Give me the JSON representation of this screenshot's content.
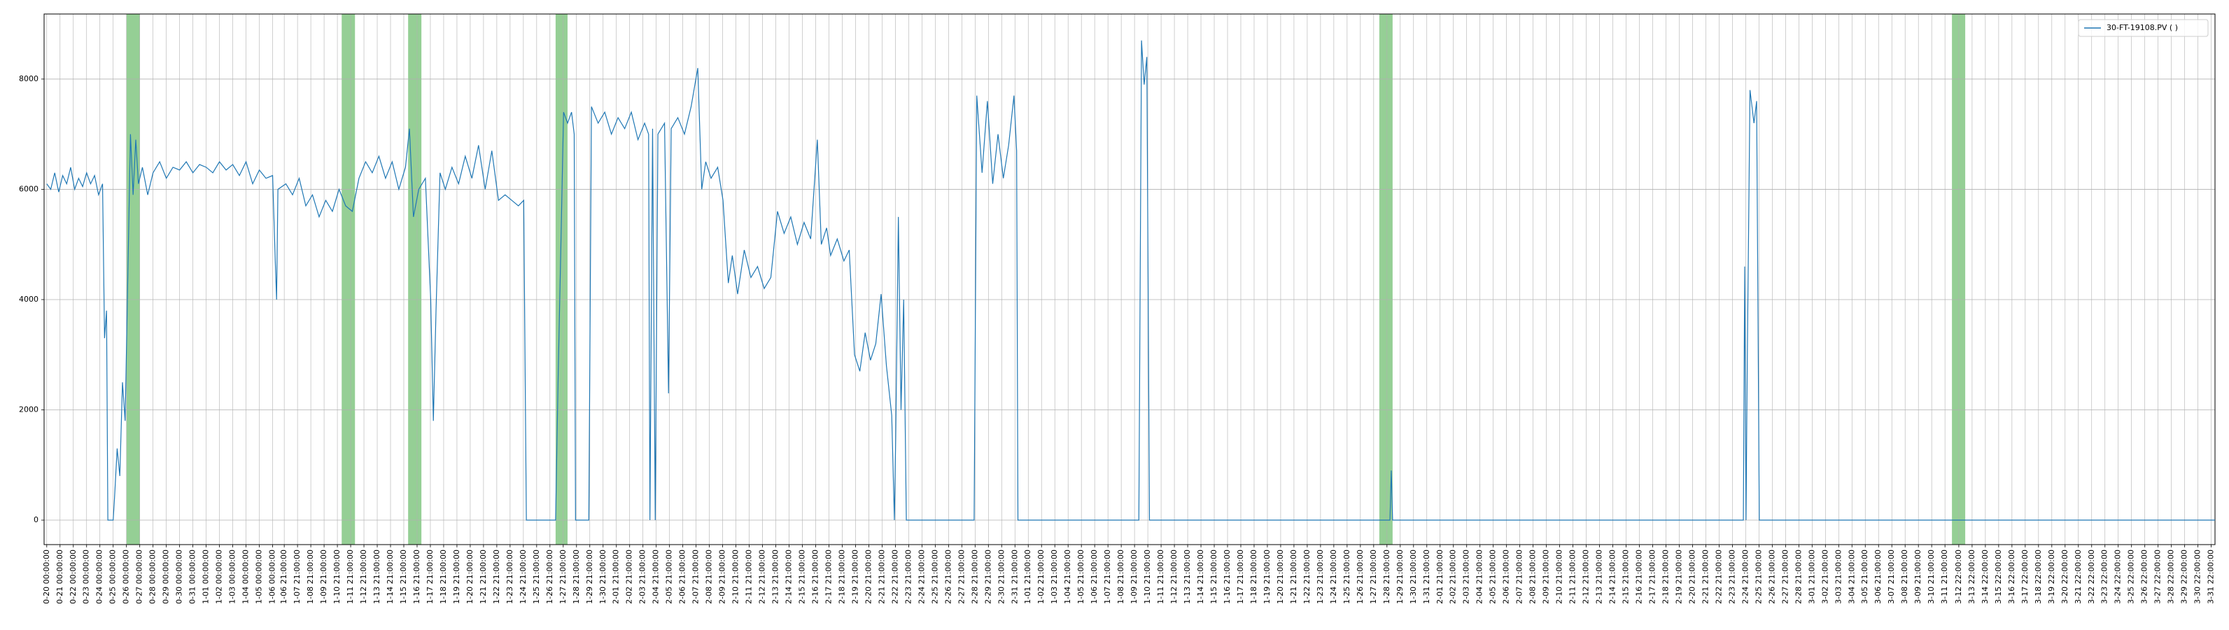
{
  "chart_data": {
    "type": "line",
    "x": [
      0,
      0.3,
      0.6,
      0.9,
      1.2,
      1.5,
      1.8,
      2.1,
      2.4,
      2.7,
      3.0,
      3.3,
      3.6,
      3.9,
      4.2,
      4.35,
      4.5,
      4.6,
      5.0,
      5.1,
      5.3,
      5.5,
      5.7,
      5.9,
      6.1,
      6.3,
      6.5,
      6.7,
      6.9,
      7.2,
      7.6,
      8,
      8.5,
      9,
      9.5,
      10,
      10.5,
      11,
      11.5,
      12,
      12.5,
      13,
      13.5,
      14,
      14.5,
      15,
      15.5,
      16,
      16.5,
      17,
      17.2,
      17.3,
      17.4,
      18,
      18.5,
      19,
      19.5,
      20,
      20.5,
      21,
      21.5,
      22,
      22.5,
      23,
      23.5,
      24,
      24.5,
      25,
      25.5,
      26,
      26.5,
      27,
      27.3,
      27.6,
      28,
      28.5,
      28.9,
      29.1,
      29.3,
      29.6,
      30,
      30.5,
      31,
      31.5,
      32,
      32.5,
      33,
      33.5,
      34,
      34.5,
      35,
      35.5,
      35.9,
      36.1,
      38.3,
      38.5,
      38.7,
      38.9,
      39.2,
      39.5,
      39.7,
      39.8,
      40.8,
      41,
      41.5,
      42,
      42.5,
      43,
      43.5,
      44,
      44.5,
      45,
      45.3,
      45.4,
      45.6,
      45.8,
      46,
      46.5,
      46.8,
      47,
      47.5,
      48,
      48.5,
      49,
      49.3,
      49.6,
      50,
      50.5,
      50.9,
      51.3,
      51.6,
      52,
      52.5,
      53,
      53.5,
      54,
      54.5,
      55,
      55.5,
      56,
      56.5,
      57,
      57.5,
      58,
      58.3,
      58.7,
      59,
      59.5,
      60,
      60.4,
      60.8,
      61.2,
      61.6,
      62,
      62.4,
      62.8,
      63.2,
      63.6,
      63.8,
      63.9,
      64.1,
      64.3,
      64.5,
      64.7,
      69.8,
      70,
      70.4,
      70.8,
      71.2,
      71.6,
      72,
      72.4,
      72.8,
      73,
      73.1,
      82.2,
      82.4,
      82.6,
      82.8,
      83,
      101.1,
      101.2,
      101.3,
      127.7,
      127.8,
      127.9,
      128,
      128.2,
      128.5,
      128.7,
      128.9,
      163.2
    ],
    "series": [
      {
        "name": "30-FT-19108.PV ( )",
        "color": "#1f77b4",
        "values": [
          6100,
          6000,
          6300,
          5950,
          6250,
          6100,
          6400,
          6000,
          6200,
          6050,
          6300,
          6100,
          6250,
          5900,
          6100,
          3300,
          3800,
          0,
          0,
          400,
          1300,
          800,
          2500,
          1800,
          4400,
          7000,
          5900,
          6900,
          6100,
          6400,
          5900,
          6300,
          6500,
          6200,
          6400,
          6350,
          6500,
          6300,
          6450,
          6400,
          6300,
          6500,
          6350,
          6450,
          6250,
          6500,
          6100,
          6350,
          6200,
          6250,
          4700,
          4000,
          6000,
          6100,
          5900,
          6200,
          5700,
          5900,
          5500,
          5800,
          5600,
          6000,
          5700,
          5600,
          6200,
          6500,
          6300,
          6600,
          6200,
          6500,
          6000,
          6400,
          7100,
          5500,
          6000,
          6200,
          4000,
          1800,
          3800,
          6300,
          6000,
          6400,
          6100,
          6600,
          6200,
          6800,
          6000,
          6700,
          5800,
          5900,
          5800,
          5700,
          5800,
          0,
          0,
          2700,
          5000,
          7400,
          7200,
          7400,
          7000,
          0,
          0,
          7500,
          7200,
          7400,
          7000,
          7300,
          7100,
          7400,
          6900,
          7200,
          7000,
          0,
          7100,
          0,
          7000,
          7200,
          2300,
          7100,
          7300,
          7000,
          7500,
          8200,
          6000,
          6500,
          6200,
          6400,
          5800,
          4300,
          4800,
          4100,
          4900,
          4400,
          4600,
          4200,
          4400,
          5600,
          5200,
          5500,
          5000,
          5400,
          5100,
          6900,
          5000,
          5300,
          4800,
          5100,
          4700,
          4900,
          3000,
          2700,
          3400,
          2900,
          3200,
          4100,
          2800,
          1900,
          0,
          1500,
          5500,
          2000,
          4000,
          0,
          0,
          7700,
          6300,
          7600,
          6100,
          7000,
          6200,
          6800,
          7700,
          6700,
          0,
          0,
          8700,
          7900,
          8400,
          0,
          0,
          900,
          0,
          0,
          4600,
          0,
          3000,
          7800,
          7200,
          7600,
          0,
          0
        ]
      }
    ],
    "spans": [
      [
        6.0,
        7.0
      ],
      [
        22.2,
        23.2
      ],
      [
        27.2,
        28.2
      ],
      [
        38.3,
        39.2
      ],
      [
        100.3,
        101.3
      ],
      [
        143.4,
        144.4
      ]
    ],
    "span_color": "#2ca02c",
    "xlim": [
      -0.2,
      163.2
    ],
    "ylim": [
      -444,
      9180
    ],
    "yticks": [
      0,
      2000,
      4000,
      6000,
      8000
    ],
    "xticks": [
      {
        "value": 0,
        "label": "0-20 00:00:00"
      },
      {
        "value": 1,
        "label": "0-21 00:00:00"
      },
      {
        "value": 2,
        "label": "0-22 00:00:00"
      },
      {
        "value": 3,
        "label": "0-23 00:00:00"
      },
      {
        "value": 4,
        "label": "0-24 00:00:00"
      },
      {
        "value": 5,
        "label": "0-25 00:00:00"
      },
      {
        "value": 6,
        "label": "0-26 00:00:00"
      },
      {
        "value": 7,
        "label": "0-27 00:00:00"
      },
      {
        "value": 8,
        "label": "0-28 00:00:00"
      },
      {
        "value": 9,
        "label": "0-29 00:00:00"
      },
      {
        "value": 10,
        "label": "0-30 00:00:00"
      },
      {
        "value": 11,
        "label": "0-31 00:00:00"
      },
      {
        "value": 12,
        "label": "1-01 00:00:00"
      },
      {
        "value": 13,
        "label": "1-02 00:00:00"
      },
      {
        "value": 14,
        "label": "1-03 00:00:00"
      },
      {
        "value": 15,
        "label": "1-04 00:00:00"
      },
      {
        "value": 16,
        "label": "1-05 00:00:00"
      },
      {
        "value": 17,
        "label": "1-06 00:00:00"
      },
      {
        "value": 17.875,
        "label": "1-06 21:00:00"
      },
      {
        "value": 18.875,
        "label": "1-07 21:00:00"
      },
      {
        "value": 19.875,
        "label": "1-08 21:00:00"
      },
      {
        "value": 20.875,
        "label": "1-09 21:00:00"
      },
      {
        "value": 21.875,
        "label": "1-10 21:00:00"
      },
      {
        "value": 22.875,
        "label": "1-11 21:00:00"
      },
      {
        "value": 23.875,
        "label": "1-12 21:00:00"
      },
      {
        "value": 24.875,
        "label": "1-13 21:00:00"
      },
      {
        "value": 25.875,
        "label": "1-14 21:00:00"
      },
      {
        "value": 26.875,
        "label": "1-15 21:00:00"
      },
      {
        "value": 27.875,
        "label": "1-16 21:00:00"
      },
      {
        "value": 28.875,
        "label": "1-17 21:00:00"
      },
      {
        "value": 29.875,
        "label": "1-18 21:00:00"
      },
      {
        "value": 30.875,
        "label": "1-19 21:00:00"
      },
      {
        "value": 31.875,
        "label": "1-20 21:00:00"
      },
      {
        "value": 32.875,
        "label": "1-21 21:00:00"
      },
      {
        "value": 33.875,
        "label": "1-22 21:00:00"
      },
      {
        "value": 34.875,
        "label": "1-23 21:00:00"
      },
      {
        "value": 35.875,
        "label": "1-24 21:00:00"
      },
      {
        "value": 36.875,
        "label": "1-25 21:00:00"
      },
      {
        "value": 37.875,
        "label": "1-26 21:00:00"
      },
      {
        "value": 38.875,
        "label": "1-27 21:00:00"
      },
      {
        "value": 39.875,
        "label": "1-28 21:00:00"
      },
      {
        "value": 40.875,
        "label": "1-29 21:00:00"
      },
      {
        "value": 41.875,
        "label": "1-30 21:00:00"
      },
      {
        "value": 42.875,
        "label": "2-01 21:00:00"
      },
      {
        "value": 43.875,
        "label": "2-02 21:00:00"
      },
      {
        "value": 44.875,
        "label": "2-03 21:00:00"
      },
      {
        "value": 45.875,
        "label": "2-04 21:00:00"
      },
      {
        "value": 46.875,
        "label": "2-05 21:00:00"
      },
      {
        "value": 47.875,
        "label": "2-06 21:00:00"
      },
      {
        "value": 48.875,
        "label": "2-07 21:00:00"
      },
      {
        "value": 49.875,
        "label": "2-08 21:00:00"
      },
      {
        "value": 50.875,
        "label": "2-09 21:00:00"
      },
      {
        "value": 51.875,
        "label": "2-10 21:00:00"
      },
      {
        "value": 52.875,
        "label": "2-11 21:00:00"
      },
      {
        "value": 53.875,
        "label": "2-12 21:00:00"
      },
      {
        "value": 54.875,
        "label": "2-13 21:00:00"
      },
      {
        "value": 55.875,
        "label": "2-14 21:00:00"
      },
      {
        "value": 56.875,
        "label": "2-15 21:00:00"
      },
      {
        "value": 57.875,
        "label": "2-16 21:00:00"
      },
      {
        "value": 58.875,
        "label": "2-17 21:00:00"
      },
      {
        "value": 59.875,
        "label": "2-18 21:00:00"
      },
      {
        "value": 60.875,
        "label": "2-19 21:00:00"
      },
      {
        "value": 61.875,
        "label": "2-20 21:00:00"
      },
      {
        "value": 62.875,
        "label": "2-21 21:00:00"
      },
      {
        "value": 63.875,
        "label": "2-22 21:00:00"
      },
      {
        "value": 64.875,
        "label": "2-23 21:00:00"
      },
      {
        "value": 65.875,
        "label": "2-24 21:00:00"
      },
      {
        "value": 66.875,
        "label": "2-25 21:00:00"
      },
      {
        "value": 67.875,
        "label": "2-26 21:00:00"
      },
      {
        "value": 68.875,
        "label": "2-27 21:00:00"
      },
      {
        "value": 69.875,
        "label": "2-28 21:00:00"
      },
      {
        "value": 70.875,
        "label": "2-29 21:00:00"
      },
      {
        "value": 71.875,
        "label": "2-30 21:00:00"
      },
      {
        "value": 72.875,
        "label": "2-31 21:00:00"
      },
      {
        "value": 73.875,
        "label": "1-01 21:00:00"
      },
      {
        "value": 74.875,
        "label": "1-02 21:00:00"
      },
      {
        "value": 75.875,
        "label": "1-03 21:00:00"
      },
      {
        "value": 76.875,
        "label": "1-04 21:00:00"
      },
      {
        "value": 77.875,
        "label": "1-05 21:00:00"
      },
      {
        "value": 78.875,
        "label": "1-06 21:00:00"
      },
      {
        "value": 79.875,
        "label": "1-07 21:00:00"
      },
      {
        "value": 80.875,
        "label": "1-08 21:00:00"
      },
      {
        "value": 81.875,
        "label": "1-09 21:00:00"
      },
      {
        "value": 82.875,
        "label": "1-10 21:00:00"
      },
      {
        "value": 83.875,
        "label": "1-11 21:00:00"
      },
      {
        "value": 84.875,
        "label": "1-12 21:00:00"
      },
      {
        "value": 85.875,
        "label": "1-13 21:00:00"
      },
      {
        "value": 86.875,
        "label": "1-14 21:00:00"
      },
      {
        "value": 87.875,
        "label": "1-15 21:00:00"
      },
      {
        "value": 88.875,
        "label": "1-16 21:00:00"
      },
      {
        "value": 89.875,
        "label": "1-17 21:00:00"
      },
      {
        "value": 90.875,
        "label": "1-18 21:00:00"
      },
      {
        "value": 91.875,
        "label": "1-19 21:00:00"
      },
      {
        "value": 92.875,
        "label": "1-20 21:00:00"
      },
      {
        "value": 93.875,
        "label": "1-21 21:00:00"
      },
      {
        "value": 94.875,
        "label": "1-22 21:00:00"
      },
      {
        "value": 95.875,
        "label": "1-23 21:00:00"
      },
      {
        "value": 96.875,
        "label": "1-24 21:00:00"
      },
      {
        "value": 97.875,
        "label": "1-25 21:00:00"
      },
      {
        "value": 98.875,
        "label": "1-26 21:00:00"
      },
      {
        "value": 99.875,
        "label": "1-27 21:00:00"
      },
      {
        "value": 100.875,
        "label": "1-28 21:00:00"
      },
      {
        "value": 101.875,
        "label": "1-29 21:00:00"
      },
      {
        "value": 102.875,
        "label": "1-30 21:00:00"
      },
      {
        "value": 103.875,
        "label": "1-31 21:00:00"
      },
      {
        "value": 104.875,
        "label": "2-01 21:00:00"
      },
      {
        "value": 105.875,
        "label": "2-02 21:00:00"
      },
      {
        "value": 106.875,
        "label": "2-03 21:00:00"
      },
      {
        "value": 107.875,
        "label": "2-04 21:00:00"
      },
      {
        "value": 108.875,
        "label": "2-05 21:00:00"
      },
      {
        "value": 109.875,
        "label": "2-06 21:00:00"
      },
      {
        "value": 110.875,
        "label": "2-07 21:00:00"
      },
      {
        "value": 111.875,
        "label": "2-08 21:00:00"
      },
      {
        "value": 112.875,
        "label": "2-09 21:00:00"
      },
      {
        "value": 113.875,
        "label": "2-10 21:00:00"
      },
      {
        "value": 114.875,
        "label": "2-11 21:00:00"
      },
      {
        "value": 115.875,
        "label": "2-12 21:00:00"
      },
      {
        "value": 116.875,
        "label": "2-13 21:00:00"
      },
      {
        "value": 117.875,
        "label": "2-14 21:00:00"
      },
      {
        "value": 118.875,
        "label": "2-15 21:00:00"
      },
      {
        "value": 119.875,
        "label": "2-16 21:00:00"
      },
      {
        "value": 120.875,
        "label": "2-17 21:00:00"
      },
      {
        "value": 121.875,
        "label": "2-18 21:00:00"
      },
      {
        "value": 122.875,
        "label": "2-19 21:00:00"
      },
      {
        "value": 123.875,
        "label": "2-20 21:00:00"
      },
      {
        "value": 124.875,
        "label": "2-21 21:00:00"
      },
      {
        "value": 125.875,
        "label": "2-22 21:00:00"
      },
      {
        "value": 126.875,
        "label": "2-23 21:00:00"
      },
      {
        "value": 127.875,
        "label": "2-24 21:00:00"
      },
      {
        "value": 128.875,
        "label": "2-25 21:00:00"
      },
      {
        "value": 129.875,
        "label": "2-26 21:00:00"
      },
      {
        "value": 130.875,
        "label": "2-27 21:00:00"
      },
      {
        "value": 131.875,
        "label": "2-28 21:00:00"
      },
      {
        "value": 132.875,
        "label": "3-01 21:00:00"
      },
      {
        "value": 133.875,
        "label": "3-02 21:00:00"
      },
      {
        "value": 134.875,
        "label": "3-03 21:00:00"
      },
      {
        "value": 135.875,
        "label": "3-04 21:00:00"
      },
      {
        "value": 136.875,
        "label": "3-05 21:00:00"
      },
      {
        "value": 137.875,
        "label": "3-06 21:00:00"
      },
      {
        "value": 138.875,
        "label": "3-07 21:00:00"
      },
      {
        "value": 139.875,
        "label": "3-08 21:00:00"
      },
      {
        "value": 140.875,
        "label": "3-09 21:00:00"
      },
      {
        "value": 141.875,
        "label": "3-10 21:00:00"
      },
      {
        "value": 142.875,
        "label": "3-11 21:00:00"
      },
      {
        "value": 143.9167,
        "label": "3-12 22:00:00"
      },
      {
        "value": 144.9167,
        "label": "3-13 22:00:00"
      },
      {
        "value": 145.9167,
        "label": "3-14 22:00:00"
      },
      {
        "value": 146.9167,
        "label": "3-15 22:00:00"
      },
      {
        "value": 147.9167,
        "label": "3-16 22:00:00"
      },
      {
        "value": 148.9167,
        "label": "3-17 22:00:00"
      },
      {
        "value": 149.9167,
        "label": "3-18 22:00:00"
      },
      {
        "value": 150.9167,
        "label": "3-19 22:00:00"
      },
      {
        "value": 151.9167,
        "label": "3-20 22:00:00"
      },
      {
        "value": 152.9167,
        "label": "3-21 22:00:00"
      },
      {
        "value": 153.9167,
        "label": "3-22 22:00:00"
      },
      {
        "value": 154.9167,
        "label": "3-23 22:00:00"
      },
      {
        "value": 155.9167,
        "label": "3-24 22:00:00"
      },
      {
        "value": 156.9167,
        "label": "3-25 22:00:00"
      },
      {
        "value": 157.9167,
        "label": "3-26 22:00:00"
      },
      {
        "value": 158.9167,
        "label": "3-27 22:00:00"
      },
      {
        "value": 159.9167,
        "label": "3-28 22:00:00"
      },
      {
        "value": 160.9167,
        "label": "3-29 22:00:00"
      },
      {
        "value": 161.9167,
        "label": "3-30 22:00:00"
      },
      {
        "value": 162.9167,
        "label": "3-31 22:00:00"
      }
    ],
    "grid": true,
    "legend": "upper right"
  }
}
